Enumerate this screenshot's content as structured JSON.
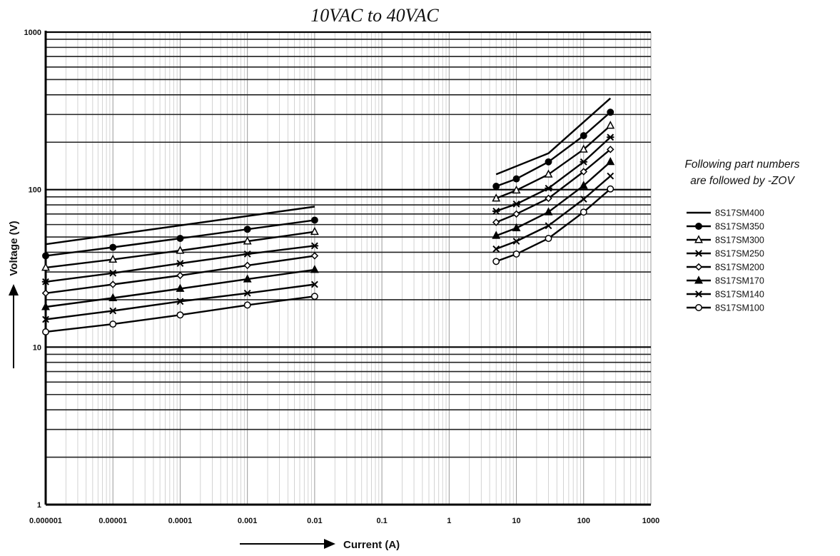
{
  "chart_data": {
    "type": "line",
    "title": "10VAC to 40VAC",
    "xlabel": "Current (A)",
    "ylabel": "Voltage (V)",
    "xscale": "log",
    "yscale": "log",
    "xlim": [
      1e-06,
      1000
    ],
    "ylim": [
      1,
      1000
    ],
    "grid": true,
    "xticks": [
      "0.000001",
      "0.00001",
      "0.0001",
      "0.001",
      "0.01",
      "0.1",
      "1",
      "10",
      "100",
      "1000"
    ],
    "yticks": [
      "1",
      "10",
      "100",
      "1000"
    ],
    "legend_note": [
      "Following part numbers",
      "are followed by -ZOV"
    ],
    "legend_position": "right",
    "series": [
      {
        "name": "8S17SM400",
        "marker": "none",
        "low": {
          "x": [
            1e-06,
            0.01
          ],
          "y": [
            45,
            78
          ]
        },
        "high": {
          "x": [
            5,
            30,
            250
          ],
          "y": [
            125,
            170,
            380
          ]
        }
      },
      {
        "name": "8S17SM350",
        "marker": "filled-circle",
        "low": {
          "x": [
            1e-06,
            1e-05,
            0.0001,
            0.001,
            0.01
          ],
          "y": [
            38,
            43,
            49,
            56,
            64
          ]
        },
        "high": {
          "x": [
            5,
            10,
            30,
            100,
            250
          ],
          "y": [
            105,
            117,
            150,
            220,
            310
          ]
        }
      },
      {
        "name": "8S17SM300",
        "marker": "open-triangle",
        "low": {
          "x": [
            1e-06,
            1e-05,
            0.0001,
            0.001,
            0.01
          ],
          "y": [
            32,
            36,
            41,
            47,
            54
          ]
        },
        "high": {
          "x": [
            5,
            10,
            30,
            100,
            250
          ],
          "y": [
            88,
            99,
            125,
            180,
            255
          ]
        }
      },
      {
        "name": "8S17SM250",
        "marker": "star",
        "low": {
          "x": [
            1e-06,
            1e-05,
            0.0001,
            0.001,
            0.01
          ],
          "y": [
            26,
            29.5,
            34,
            39,
            44
          ]
        },
        "high": {
          "x": [
            5,
            10,
            30,
            100,
            250
          ],
          "y": [
            73,
            81,
            102,
            150,
            215
          ]
        }
      },
      {
        "name": "8S17SM200",
        "marker": "open-diamond",
        "low": {
          "x": [
            1e-06,
            1e-05,
            0.0001,
            0.001,
            0.01
          ],
          "y": [
            22,
            25,
            28.5,
            33,
            38
          ]
        },
        "high": {
          "x": [
            5,
            10,
            30,
            100,
            250
          ],
          "y": [
            62,
            70,
            88,
            130,
            180
          ]
        }
      },
      {
        "name": "8S17SM170",
        "marker": "filled-triangle",
        "low": {
          "x": [
            1e-06,
            1e-05,
            0.0001,
            0.001,
            0.01
          ],
          "y": [
            18,
            20.5,
            23.5,
            27,
            31
          ]
        },
        "high": {
          "x": [
            5,
            10,
            30,
            100,
            250
          ],
          "y": [
            51,
            57,
            72,
            106,
            150
          ]
        }
      },
      {
        "name": "8S17SM140",
        "marker": "x",
        "low": {
          "x": [
            1e-06,
            1e-05,
            0.0001,
            0.001,
            0.01
          ],
          "y": [
            15,
            17,
            19.5,
            22,
            25
          ]
        },
        "high": {
          "x": [
            5,
            10,
            30,
            100,
            250
          ],
          "y": [
            42,
            47,
            59,
            87,
            122
          ]
        }
      },
      {
        "name": "8S17SM100",
        "marker": "open-circle",
        "low": {
          "x": [
            1e-06,
            1e-05,
            0.0001,
            0.001,
            0.01
          ],
          "y": [
            12.5,
            14,
            16,
            18.5,
            21
          ]
        },
        "high": {
          "x": [
            5,
            10,
            30,
            100,
            250
          ],
          "y": [
            35,
            39,
            49,
            72,
            101
          ]
        }
      }
    ]
  }
}
